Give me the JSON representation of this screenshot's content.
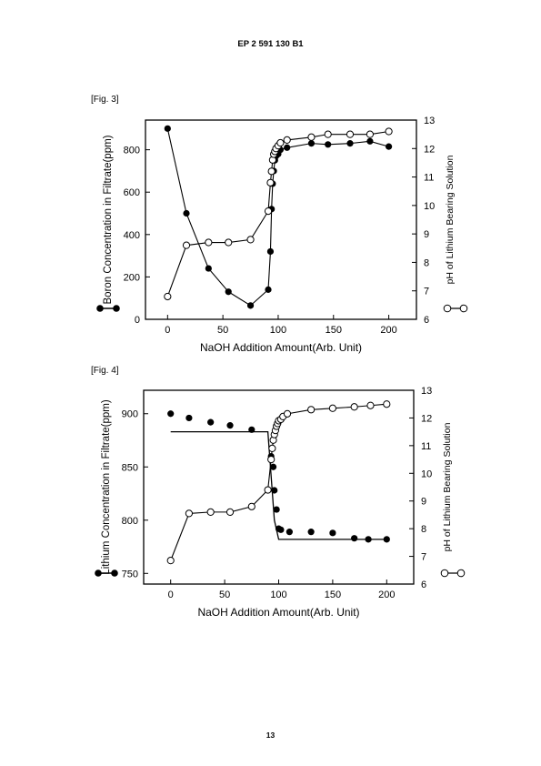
{
  "page": {
    "header": "EP 2 591 130 B1",
    "page_number": "13"
  },
  "chart_data": [
    {
      "fig_label": "[Fig. 3]",
      "type": "line",
      "xlabel": "NaOH Addition Amount(Arb. Unit)",
      "ylabel_left": "Boron Concentration in Filtrate(ppm)",
      "ylabel_right": "pH of Lithium Bearing Solution",
      "xlim": [
        -20,
        225
      ],
      "ylim_left": [
        0,
        940
      ],
      "ylim_right": [
        6,
        13
      ],
      "x_ticks": [
        0,
        50,
        100,
        150,
        200
      ],
      "y_left_ticks": [
        0,
        200,
        400,
        600,
        800
      ],
      "y_right_ticks": [
        6,
        7,
        8,
        9,
        10,
        11,
        12,
        13
      ],
      "series": [
        {
          "name": "Boron Concentration in Filtrate(ppm)",
          "axis": "left",
          "marker": "filled",
          "x": [
            0,
            17,
            37,
            55,
            75,
            91,
            93,
            94,
            95,
            96,
            97,
            98,
            100,
            102,
            108,
            130,
            145,
            165,
            183,
            200
          ],
          "y": [
            900,
            500,
            240,
            130,
            65,
            140,
            320,
            520,
            640,
            700,
            750,
            770,
            780,
            800,
            810,
            830,
            825,
            830,
            840,
            815
          ]
        },
        {
          "name": "pH of Lithium Bearing Solution",
          "axis": "right",
          "marker": "open",
          "x": [
            0,
            17,
            37,
            55,
            75,
            91,
            93,
            94,
            95,
            96,
            97,
            98,
            100,
            102,
            108,
            130,
            145,
            165,
            183,
            200
          ],
          "y": [
            6.8,
            8.6,
            8.7,
            8.7,
            8.8,
            9.8,
            10.8,
            11.2,
            11.6,
            11.8,
            11.9,
            12.0,
            12.1,
            12.2,
            12.3,
            12.4,
            12.5,
            12.5,
            12.5,
            12.6
          ]
        }
      ]
    },
    {
      "fig_label": "[Fig. 4]",
      "type": "line",
      "xlabel": "NaOH Addition Amount(Arb. Unit)",
      "ylabel_left": "Lithium Concentration in Filtrate(ppm)",
      "ylabel_right": "pH of Lithium Bearing Solution",
      "xlim": [
        -25,
        225
      ],
      "ylim_left": [
        740,
        922
      ],
      "ylim_right": [
        6,
        13
      ],
      "x_ticks": [
        0,
        50,
        100,
        150,
        200
      ],
      "y_left_ticks": [
        750,
        800,
        850,
        900
      ],
      "y_right_ticks": [
        6,
        7,
        8,
        9,
        10,
        11,
        12,
        13
      ],
      "fit_line": {
        "axis": "left",
        "x": [
          0,
          90,
          96,
          100,
          200
        ],
        "y": [
          883,
          883,
          800,
          782,
          782
        ]
      },
      "series": [
        {
          "name": "Lithium Concentration in Filtrate(ppm)",
          "axis": "left",
          "marker": "filled",
          "line": false,
          "x": [
            0,
            17,
            37,
            55,
            75,
            93,
            95,
            96,
            98,
            100,
            102,
            110,
            130,
            150,
            170,
            183,
            200
          ],
          "y": [
            900,
            896,
            892,
            889,
            885,
            860,
            850,
            828,
            810,
            792,
            791,
            789,
            789,
            788,
            783,
            782,
            782
          ]
        },
        {
          "name": "pH of Lithium Bearing Solution",
          "axis": "right",
          "marker": "open",
          "line": true,
          "x": [
            0,
            17,
            37,
            55,
            75,
            90,
            93,
            94,
            95,
            96,
            97,
            98,
            99,
            100,
            102,
            104,
            108,
            130,
            150,
            170,
            185,
            200
          ],
          "y": [
            6.85,
            8.55,
            8.6,
            8.6,
            8.8,
            9.4,
            10.5,
            10.9,
            11.2,
            11.4,
            11.55,
            11.7,
            11.8,
            11.9,
            11.95,
            12.05,
            12.15,
            12.3,
            12.35,
            12.4,
            12.45,
            12.5
          ]
        }
      ]
    }
  ]
}
